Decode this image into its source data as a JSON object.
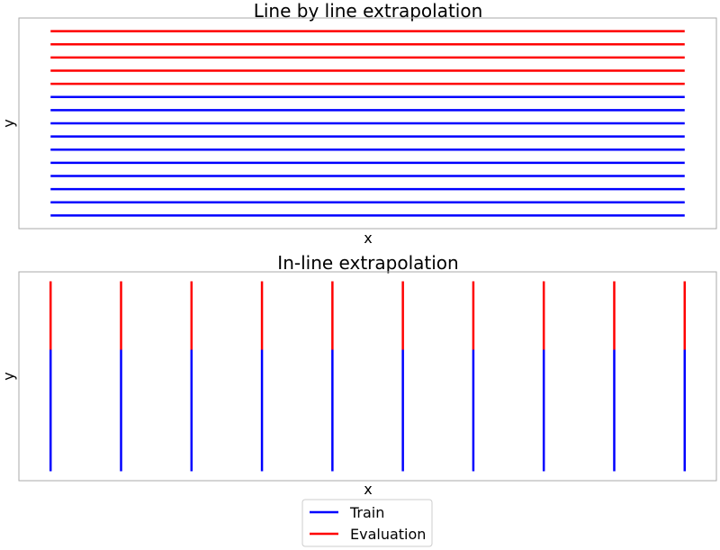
{
  "chart_data": [
    {
      "type": "line",
      "title": "Line by line extrapolation",
      "xlabel": "x",
      "ylabel": "y",
      "orientation": "horizontal",
      "grid": false,
      "tick_labels": "none",
      "series": [
        {
          "name": "Train",
          "color": "#0000ff",
          "line_count": 10,
          "y_values": [
            0,
            1,
            2,
            3,
            4,
            5,
            6,
            7,
            8,
            9
          ],
          "x_range": [
            0,
            1
          ]
        },
        {
          "name": "Evaluation",
          "color": "#ff0000",
          "line_count": 5,
          "y_values": [
            10,
            11,
            12,
            13,
            14
          ],
          "x_range": [
            0,
            1
          ]
        }
      ],
      "ylim": [
        -1,
        15
      ],
      "xlim": [
        -0.05,
        1.05
      ]
    },
    {
      "type": "line",
      "title": "In-line extrapolation",
      "xlabel": "x",
      "ylabel": "y",
      "orientation": "vertical",
      "grid": false,
      "tick_labels": "none",
      "x_values": [
        0,
        1,
        2,
        3,
        4,
        5,
        6,
        7,
        8,
        9
      ],
      "series": [
        {
          "name": "Train",
          "color": "#0000ff",
          "y_range": [
            0,
            0.64
          ]
        },
        {
          "name": "Evaluation",
          "color": "#ff0000",
          "y_range": [
            0.64,
            1
          ]
        }
      ],
      "xlim": [
        -0.45,
        9.45
      ],
      "ylim": [
        -0.05,
        1.05
      ]
    }
  ],
  "legend": {
    "placement": "bottom-center",
    "items": [
      {
        "label": "Train",
        "color": "#0000ff"
      },
      {
        "label": "Evaluation",
        "color": "#ff0000"
      }
    ]
  }
}
